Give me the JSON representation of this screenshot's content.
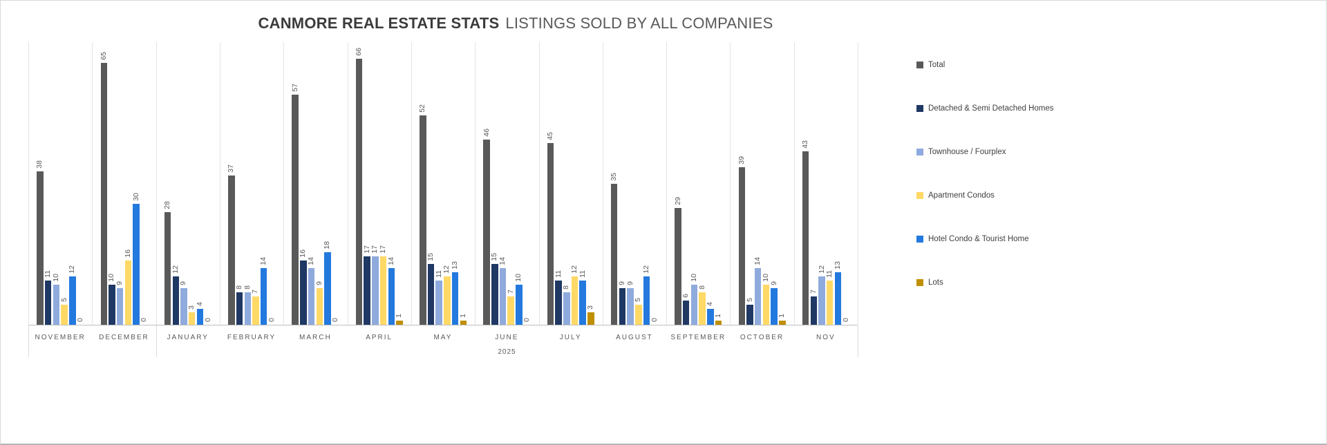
{
  "title": {
    "bold": "CANMORE REAL ESTATE STATS",
    "regular": "LISTINGS SOLD BY ALL COMPANIES"
  },
  "chart_data": {
    "type": "bar",
    "title": "CANMORE REAL ESTATE STATS LISTINGS SOLD BY ALL COMPANIES",
    "categories": [
      "NOVEMBER",
      "DECEMBER",
      "JANUARY",
      "FEBRUARY",
      "MARCH",
      "APRIL",
      "MAY",
      "JUNE",
      "JULY",
      "AUGUST",
      "SEPTEMBER",
      "OCTOBER",
      "NOV"
    ],
    "year_label": "2025",
    "xlabel": "",
    "ylabel": "",
    "ylim": [
      0,
      70
    ],
    "grid": "vertical-category-separators",
    "legend_position": "right",
    "value_labels": "rotated-90-above-bars",
    "series": [
      {
        "name": "Total",
        "color": "#595959",
        "values": [
          38,
          65,
          28,
          37,
          57,
          66,
          52,
          46,
          45,
          35,
          29,
          39,
          43
        ]
      },
      {
        "name": "Detached & Semi Detached Homes",
        "color": "#1F3864",
        "values": [
          11,
          10,
          12,
          8,
          16,
          17,
          15,
          15,
          11,
          9,
          6,
          5,
          7
        ]
      },
      {
        "name": "Townhouse / Fourplex",
        "color": "#8FAADC",
        "values": [
          10,
          9,
          9,
          8,
          14,
          17,
          11,
          14,
          8,
          9,
          10,
          14,
          12
        ]
      },
      {
        "name": "Apartment Condos",
        "color": "#FFD966",
        "values": [
          5,
          16,
          3,
          7,
          9,
          17,
          12,
          7,
          12,
          5,
          8,
          10,
          11
        ]
      },
      {
        "name": "Hotel Condo & Tourist Home",
        "color": "#2379DE",
        "values": [
          12,
          30,
          4,
          14,
          18,
          14,
          13,
          10,
          11,
          12,
          4,
          9,
          13
        ]
      },
      {
        "name": "Lots",
        "color": "#BF8F00",
        "values": [
          0,
          0,
          0,
          0,
          0,
          1,
          1,
          0,
          3,
          0,
          1,
          1,
          0
        ]
      }
    ]
  }
}
